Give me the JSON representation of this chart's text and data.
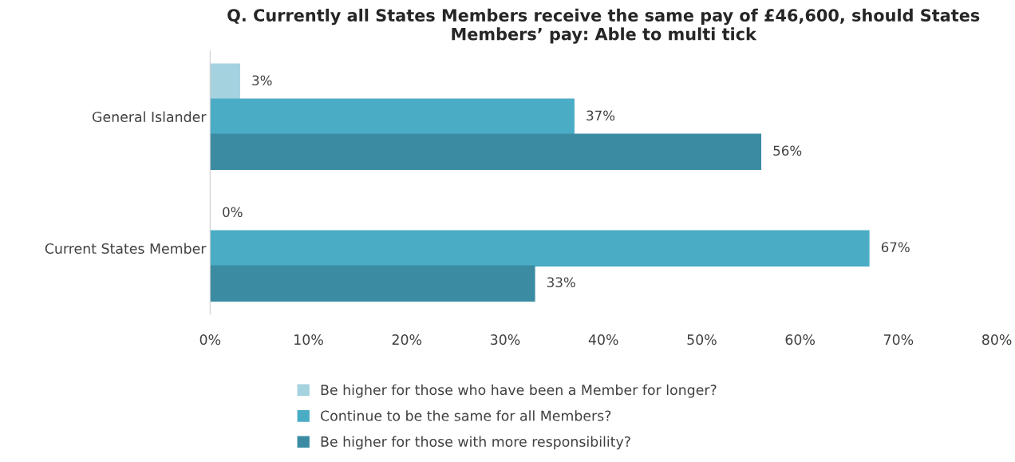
{
  "chart_data": {
    "type": "bar",
    "orientation": "horizontal",
    "title": "Q. Currently all States Members receive the same pay of £46,600, should States Members’ pay: Able to multi tick",
    "categories": [
      "General Islander",
      "Current States Member"
    ],
    "series": [
      {
        "name": "Be higher for those who have been a Member for longer?",
        "color": "#a5d2df",
        "values": [
          3,
          0
        ],
        "value_labels": [
          "3%",
          "0%"
        ]
      },
      {
        "name": "Continue to be the same for all Members?",
        "color": "#4bacc6",
        "values": [
          37,
          67
        ],
        "value_labels": [
          "37%",
          "67%"
        ]
      },
      {
        "name": "Be higher for those with more responsibility?",
        "color": "#3b8ca3",
        "values": [
          56,
          33
        ],
        "value_labels": [
          "56%",
          "33%"
        ]
      }
    ],
    "xlim": [
      0,
      80
    ],
    "xticks": [
      {
        "value": 0,
        "label": "0%"
      },
      {
        "value": 10,
        "label": "10%"
      },
      {
        "value": 20,
        "label": "20%"
      },
      {
        "value": 30,
        "label": "30%"
      },
      {
        "value": 40,
        "label": "40%"
      },
      {
        "value": 50,
        "label": "50%"
      },
      {
        "value": 60,
        "label": "60%"
      },
      {
        "value": 70,
        "label": "70%"
      },
      {
        "value": 80,
        "label": "80%"
      }
    ],
    "grid": false,
    "legend": "bottom"
  }
}
